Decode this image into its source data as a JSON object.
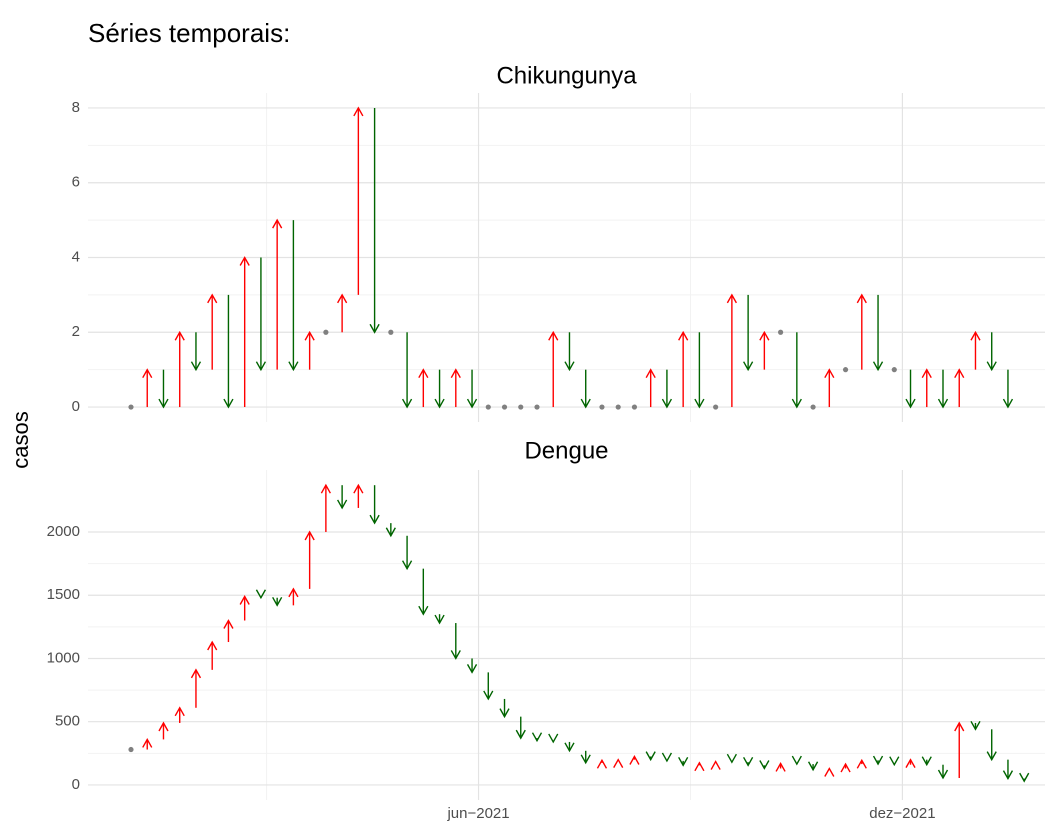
{
  "title": "Séries temporais:",
  "y_label": "casos",
  "xticks": [
    {
      "value": 21.4,
      "label": "jun−2021"
    },
    {
      "value": 47.5,
      "label": "dez−2021"
    }
  ],
  "chart_data": [
    {
      "type": "arrow",
      "title": "Chikungunya",
      "categories": [
        null,
        null,
        null,
        null,
        null,
        null,
        null,
        null,
        null,
        null,
        null,
        null,
        null,
        null,
        null,
        null,
        null,
        null,
        null,
        null,
        null,
        null,
        null,
        null,
        null,
        null,
        null,
        null,
        null,
        null,
        null,
        null,
        null,
        null,
        null,
        null,
        null,
        null,
        null,
        null,
        null,
        null,
        null,
        null,
        null,
        null,
        null,
        null,
        null,
        null,
        null,
        null,
        null,
        null,
        null,
        null
      ],
      "values": [
        0,
        1,
        0,
        2,
        1,
        3,
        0,
        4,
        1,
        5,
        1,
        2,
        2,
        3,
        8,
        2,
        2,
        0,
        1,
        0,
        1,
        0,
        0,
        0,
        0,
        0,
        2,
        1,
        0,
        0,
        0,
        0,
        1,
        0,
        2,
        0,
        0,
        3,
        1,
        2,
        2,
        0,
        0,
        1,
        1,
        3,
        1,
        1,
        0,
        1,
        0,
        1,
        2,
        1,
        0,
        null
      ],
      "up_color": "#ff0000",
      "down_color": "#006400",
      "flat_color": "#808080",
      "ylim": [
        -0.4,
        8.4
      ],
      "yticks": [
        0,
        2,
        4,
        6,
        8
      ],
      "grid": true
    },
    {
      "type": "arrow",
      "title": "Dengue",
      "categories": [
        null,
        null,
        null,
        null,
        null,
        null,
        null,
        null,
        null,
        null,
        null,
        null,
        null,
        null,
        null,
        null,
        null,
        null,
        null,
        null,
        null,
        null,
        null,
        null,
        null,
        null,
        null,
        null,
        null,
        null,
        null,
        null,
        null,
        null,
        null,
        null,
        null,
        null,
        null,
        null,
        null,
        null,
        null,
        null,
        null,
        null,
        null,
        null,
        null,
        null,
        null,
        null,
        null,
        null,
        null,
        null
      ],
      "values": [
        280,
        360,
        490,
        610,
        910,
        1130,
        1300,
        1490,
        1480,
        1420,
        1550,
        2000,
        2370,
        2190,
        2370,
        2070,
        1970,
        1710,
        1350,
        1280,
        1000,
        890,
        680,
        540,
        370,
        350,
        340,
        270,
        175,
        195,
        200,
        225,
        200,
        190,
        155,
        175,
        185,
        180,
        155,
        130,
        170,
        165,
        120,
        130,
        165,
        195,
        165,
        160,
        200,
        160,
        55,
        490,
        440,
        200,
        50,
        30
      ],
      "up_color": "#ff0000",
      "down_color": "#006400",
      "flat_color": "#808080",
      "ylim": [
        -119,
        2490
      ],
      "yticks": [
        0,
        500,
        1000,
        1500,
        2000
      ],
      "grid": true
    }
  ]
}
